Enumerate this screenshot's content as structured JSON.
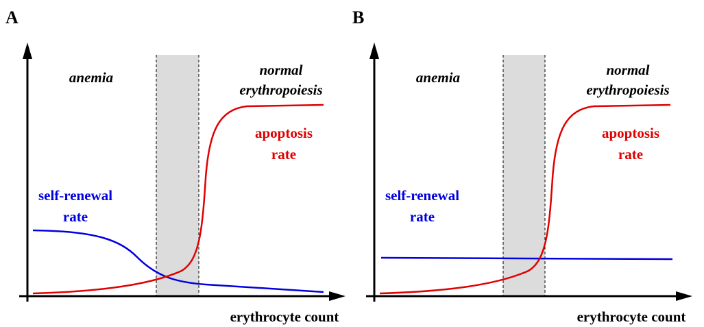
{
  "panels": [
    {
      "label": "A",
      "anemia": "anemia",
      "normal": [
        "normal",
        "erythropoiesis"
      ],
      "apoptosis": [
        "apoptosis",
        "rate"
      ],
      "self_renewal": [
        "self-renewal",
        "rate"
      ],
      "x_axis_label": "erythrocyte count"
    },
    {
      "label": "B",
      "anemia": "anemia",
      "normal": [
        "normal",
        "erythropoiesis"
      ],
      "apoptosis": [
        "apoptosis",
        "rate"
      ],
      "self_renewal": [
        "self-renewal",
        "rate"
      ],
      "x_axis_label": "erythrocyte count"
    }
  ]
}
